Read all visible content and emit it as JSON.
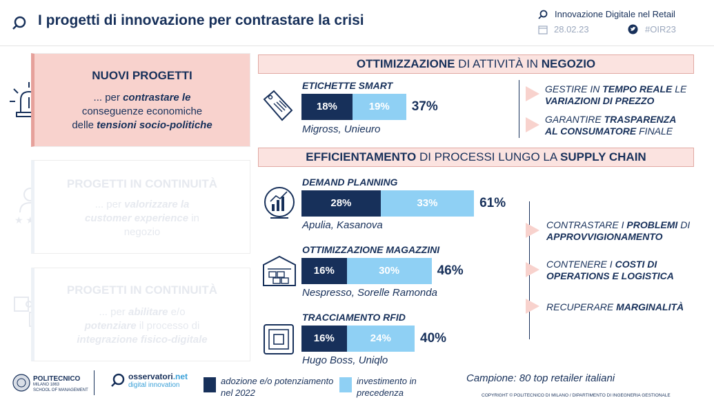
{
  "header": {
    "title": "I progetti di innovazione per contrastare la crisi",
    "report": "Innovazione Digitale nel Retail",
    "date": "28.02.23",
    "hashtag": "#OIR23"
  },
  "left_cards": [
    {
      "title": "NUOVI PROGETTI",
      "line1_pre": "... per ",
      "line1_bold": "contrastare le",
      "line2": "conseguenze economiche",
      "line3_pre": "delle ",
      "line3_bold": "tensioni socio-politiche"
    },
    {
      "title": "PROGETTI IN CONTINUITÀ",
      "line1_pre": "... per ",
      "line1_bold": "valorizzare la",
      "line2_bold": "customer experience",
      "line2_post": " in",
      "line3": "negozio"
    },
    {
      "title": "PROGETTI IN CONTINUITÀ",
      "line1_pre": "... per ",
      "line1_bold": "abilitare",
      "line1_post": " e/o",
      "line2_bold": "potenziare",
      "line2_post": " il processo di",
      "line3_bold": "integrazione fisico-digitale"
    }
  ],
  "section1": {
    "head_bold1": "OTTIMIZZAZIONE",
    "head_mid": " DI ATTIVITÀ IN ",
    "head_bold2": "NEGOZIO",
    "project": {
      "title": "ETICHETTE SMART",
      "adoption": "18%",
      "investment": "19%",
      "total": "37%",
      "brands": "Migross, Unieuro",
      "adoption_value": 18,
      "investment_value": 19
    }
  },
  "section2": {
    "head_bold1": "EFFICIENTAMENTO",
    "head_mid": " DI PROCESSI LUNGO LA ",
    "head_bold2": "SUPPLY CHAIN",
    "projects": [
      {
        "title": "DEMAND PLANNING",
        "adoption": "28%",
        "investment": "33%",
        "total": "61%",
        "brands": "Apulia, Kasanova",
        "adoption_value": 28,
        "investment_value": 33
      },
      {
        "title": "OTTIMIZZAZIONE MAGAZZINI",
        "adoption": "16%",
        "investment": "30%",
        "total": "46%",
        "brands": "Nespresso, Sorelle Ramonda",
        "adoption_value": 16,
        "investment_value": 30
      },
      {
        "title": "TRACCIAMENTO RFID",
        "adoption": "16%",
        "investment": "24%",
        "total": "40%",
        "brands": "Hugo Boss, Uniqlo",
        "adoption_value": 16,
        "investment_value": 24
      }
    ]
  },
  "benefits1": [
    {
      "a": "GESTIRE IN ",
      "b": "TEMPO REALE",
      "c": " LE",
      "d": "VARIAZIONI DI PREZZO"
    },
    {
      "a": "GARANTIRE ",
      "b": "TRASPARENZA",
      "c": "",
      "d": "AL CONSUMATORE",
      "e": " FINALE"
    }
  ],
  "benefits2": [
    {
      "a": "CONTRASTARE I ",
      "b": "PROBLEMI",
      "c": " DI",
      "d": "APPROVVIGIONAMENTO"
    },
    {
      "a": "CONTENERE I ",
      "b": "COSTI DI",
      "c": "",
      "d": "OPERATIONS E LOGISTICA"
    },
    {
      "a": "RECUPERARE ",
      "b": "MARGINALITÀ"
    }
  ],
  "footer": {
    "logo1": "POLITECNICO",
    "logo1_sub1": "MILANO 1863",
    "logo1_sub2": "SCHOOL OF MANAGEMENT",
    "logo2": "osservatori",
    "logo2_tld": ".net",
    "logo2_sub": "digital innovation",
    "legend_dark": "adozione e/o potenziamento nel 2022",
    "legend_light": "investimento in precedenza",
    "sample": "Campione: 80 top retailer italiani",
    "copyright": "COPYRIGHT © POLITECNICO DI MILANO / DIPARTIMENTO DI INGEGNERIA GESTIONALE"
  },
  "colors": {
    "dark": "#17305a",
    "light": "#8fd0f4",
    "pink": "#f8d2cd"
  }
}
